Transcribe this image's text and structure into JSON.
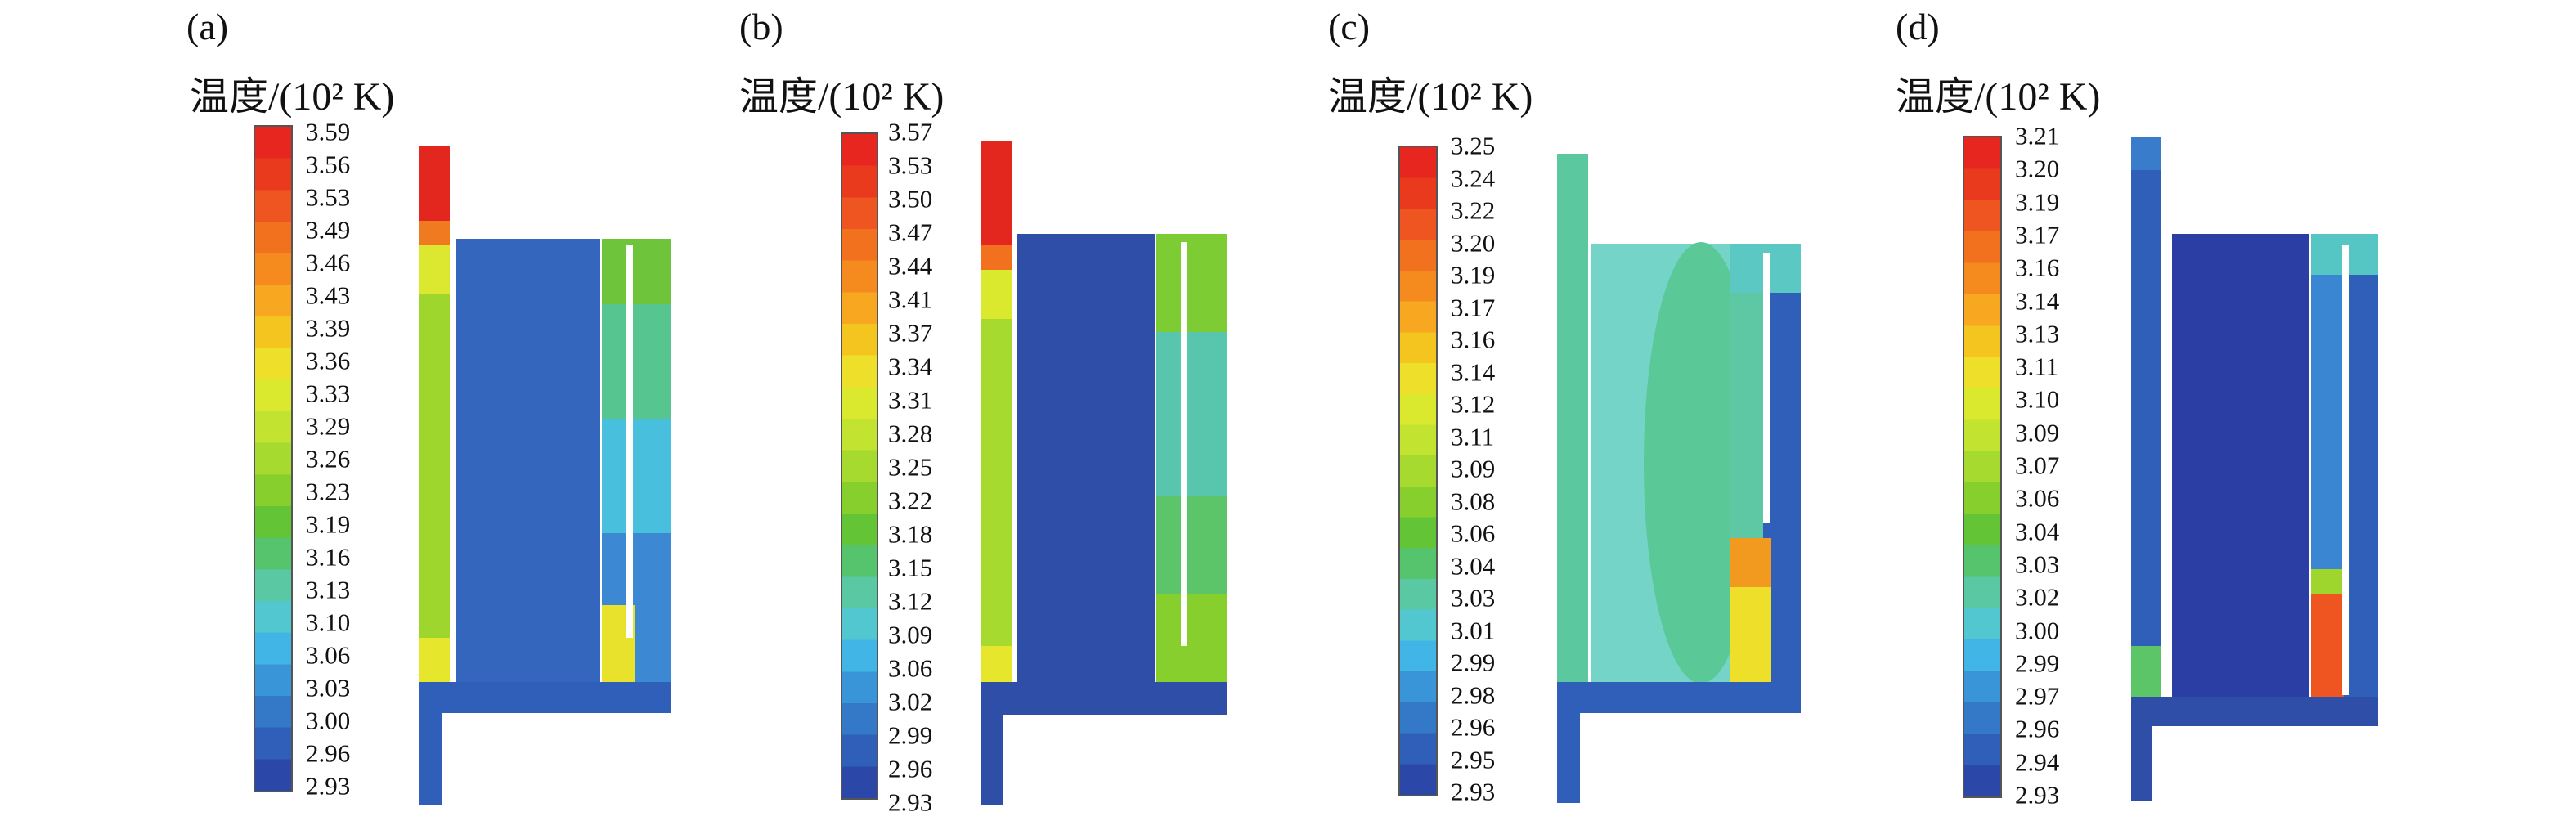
{
  "panels": [
    {
      "label": "(a)",
      "unit_title": "温度/(10² K)",
      "ticks": [
        "3.59",
        "3.56",
        "3.53",
        "3.49",
        "3.46",
        "3.43",
        "3.39",
        "3.36",
        "3.33",
        "3.29",
        "3.26",
        "3.23",
        "3.19",
        "3.16",
        "3.13",
        "3.10",
        "3.06",
        "3.03",
        "3.00",
        "2.96",
        "2.93"
      ]
    },
    {
      "label": "(b)",
      "unit_title": "温度/(10² K)",
      "ticks": [
        "3.57",
        "3.53",
        "3.50",
        "3.47",
        "3.44",
        "3.41",
        "3.37",
        "3.34",
        "3.31",
        "3.28",
        "3.25",
        "3.22",
        "3.18",
        "3.15",
        "3.12",
        "3.09",
        "3.06",
        "3.02",
        "2.99",
        "2.96",
        "2.93"
      ]
    },
    {
      "label": "(c)",
      "unit_title": "温度/(10² K)",
      "ticks": [
        "3.25",
        "3.24",
        "3.22",
        "3.20",
        "3.19",
        "3.17",
        "3.16",
        "3.14",
        "3.12",
        "3.11",
        "3.09",
        "3.08",
        "3.06",
        "3.04",
        "3.03",
        "3.01",
        "2.99",
        "2.98",
        "2.96",
        "2.95",
        "2.93"
      ]
    },
    {
      "label": "(d)",
      "unit_title": "温度/(10² K)",
      "ticks": [
        "3.21",
        "3.20",
        "3.19",
        "3.17",
        "3.16",
        "3.14",
        "3.13",
        "3.11",
        "3.10",
        "3.09",
        "3.07",
        "3.06",
        "3.04",
        "3.03",
        "3.02",
        "3.00",
        "2.99",
        "2.97",
        "2.96",
        "2.94",
        "2.93"
      ]
    }
  ],
  "colormap": [
    "#e6261f",
    "#ea3a1e",
    "#ef5521",
    "#f2711f",
    "#f58b1e",
    "#f7a720",
    "#f4c51f",
    "#eedf2a",
    "#dbe92e",
    "#c2e330",
    "#a6da2e",
    "#86cf2c",
    "#63c535",
    "#55c46c",
    "#5bc8a4",
    "#52c7cf",
    "#41b6e6",
    "#3a95d8",
    "#3479c8",
    "#2f5fb8",
    "#2b48a8"
  ]
}
